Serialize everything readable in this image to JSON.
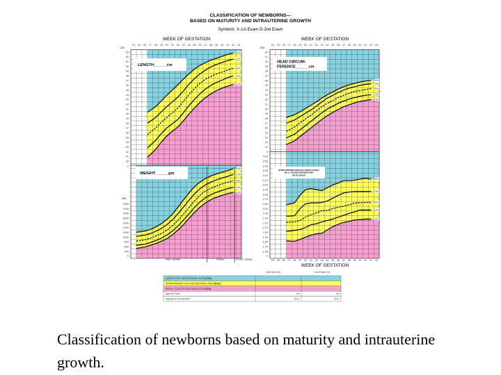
{
  "header": {
    "title_line1": "CLASSIFICATION OF NEWBORNS—",
    "title_line2": "BASED ON MATURITY AND INTRAUTERINE GROWTH",
    "symbols": "Symbols: X-1st Exam  O-2nd Exam",
    "week_of_gestation": "WEEK OF GESTATION",
    "cm_label": "CM.",
    "gm_label": "GM"
  },
  "colors": {
    "lga": "#86d2e0",
    "aga": "#ffff5e",
    "sga": "#f59fd0",
    "grid": "#4a4a4a"
  },
  "weeks": [
    "24",
    "25",
    "26",
    "27",
    "28",
    "29",
    "30",
    "31",
    "32",
    "33",
    "34",
    "35",
    "36",
    "37",
    "38",
    "39",
    "40",
    "41",
    "42",
    "43"
  ],
  "term": {
    "pre_term": "PRE-TERM",
    "term": "TERM",
    "post_term": "POST-TERM",
    "left_arrow": "←",
    "right_arrow": "→"
  },
  "chart_data": [
    {
      "type": "line",
      "panel": "length",
      "label_lines": [
        "LENGTH______cm"
      ],
      "ylabel": "CM.",
      "yticks": [
        "53",
        "52",
        "51",
        "50",
        "49",
        "48",
        "47",
        "46",
        "45",
        "44",
        "43",
        "42",
        "41",
        "40",
        "39",
        "38",
        "37",
        "36",
        "35",
        "34",
        "33",
        "32",
        "31",
        "30",
        "0"
      ],
      "x": [
        27,
        28,
        29,
        30,
        31,
        32,
        33,
        34,
        35,
        36,
        37,
        38,
        39,
        40,
        41,
        42
      ],
      "series": [
        {
          "name": "90%",
          "values": [
            40.3,
            41.5,
            42.7,
            43.9,
            45.0,
            46.1,
            47.3,
            48.4,
            49.4,
            50.2,
            50.8,
            51.3,
            51.7,
            52.1,
            52.5,
            52.8
          ]
        },
        {
          "name": "75%",
          "values": [
            38.0,
            39.2,
            40.4,
            41.5,
            42.5,
            43.5,
            44.8,
            46.2,
            47.4,
            48.4,
            49.2,
            49.9,
            50.4,
            50.8,
            51.2,
            51.5
          ]
        },
        {
          "name": "50%",
          "values": [
            35.6,
            37.0,
            38.2,
            39.2,
            40.2,
            41.2,
            42.6,
            44.0,
            45.3,
            46.4,
            47.3,
            47.9,
            48.4,
            48.8,
            49.2,
            49.6
          ]
        },
        {
          "name": "25%",
          "values": [
            32.8,
            34.4,
            35.8,
            37.0,
            37.9,
            38.8,
            40.2,
            41.7,
            43.0,
            44.2,
            45.2,
            46.0,
            46.6,
            47.1,
            47.6,
            48.0
          ]
        },
        {
          "name": "10%",
          "values": [
            30.8,
            32.5,
            34.0,
            35.3,
            36.3,
            37.2,
            38.5,
            39.9,
            41.2,
            42.4,
            43.4,
            44.2,
            44.9,
            45.4,
            45.8,
            46.2
          ]
        }
      ]
    },
    {
      "type": "line",
      "panel": "weight",
      "label_lines": [
        "WEIGHT______gm"
      ],
      "ylabel": "GM",
      "yticks": [
        "2400",
        "2200",
        "2000",
        "1800",
        "1600",
        "1400",
        "1200",
        "1000",
        "800",
        "600",
        "400",
        "0"
      ],
      "x": [
        25,
        26,
        27,
        28,
        29,
        30,
        31,
        32,
        33,
        34,
        35,
        36,
        37,
        38,
        39,
        40,
        41,
        42
      ],
      "series": [
        {
          "name": "90%",
          "values": [
            1200,
            1250,
            1320,
            1420,
            1560,
            1740,
            1960,
            2250,
            2560,
            2850,
            3120,
            3320,
            3470,
            3580,
            3660,
            3730,
            3800,
            3880
          ]
        },
        {
          "name": "75%",
          "values": [
            1030,
            1080,
            1150,
            1240,
            1360,
            1520,
            1720,
            1980,
            2260,
            2550,
            2820,
            3040,
            3200,
            3320,
            3410,
            3490,
            3560,
            3640
          ]
        },
        {
          "name": "50%",
          "values": [
            830,
            880,
            950,
            1040,
            1150,
            1290,
            1470,
            1700,
            1960,
            2240,
            2520,
            2760,
            2940,
            3060,
            3160,
            3240,
            3310,
            3380
          ]
        },
        {
          "name": "25%",
          "values": [
            650,
            700,
            770,
            850,
            950,
            1080,
            1250,
            1460,
            1710,
            1980,
            2250,
            2480,
            2660,
            2790,
            2890,
            2970,
            3040,
            3100
          ]
        },
        {
          "name": "10%",
          "values": [
            520,
            580,
            650,
            730,
            820,
            930,
            1090,
            1290,
            1520,
            1780,
            2040,
            2260,
            2440,
            2580,
            2680,
            2760,
            2830,
            2880
          ]
        }
      ]
    },
    {
      "type": "line",
      "panel": "head-circumference",
      "label_lines": [
        "HEAD CIRCUM-",
        "FERENCE______cm"
      ],
      "ylabel": "CM.",
      "yticks": [
        "42",
        "41",
        "40",
        "39",
        "38",
        "37",
        "36",
        "35",
        "34",
        "33",
        "32",
        "31",
        "30",
        "29",
        "28",
        "27",
        "26",
        "25",
        "24",
        "23",
        "22",
        "0"
      ],
      "x": [
        27,
        28,
        29,
        30,
        31,
        32,
        33,
        34,
        35,
        36,
        37,
        38,
        39,
        40,
        41,
        42
      ],
      "series": [
        {
          "name": "90%",
          "values": [
            28.2,
            28.8,
            29.4,
            30.1,
            30.8,
            31.5,
            32.3,
            33.0,
            33.6,
            34.2,
            34.7,
            35.1,
            35.4,
            35.7,
            35.9,
            36.0
          ]
        },
        {
          "name": "75%",
          "values": [
            27.0,
            27.7,
            28.4,
            29.1,
            29.8,
            30.6,
            31.5,
            32.3,
            32.9,
            33.5,
            34.0,
            34.4,
            34.7,
            35.0,
            35.2,
            35.3
          ]
        },
        {
          "name": "50%",
          "values": [
            25.3,
            26.2,
            27.1,
            27.9,
            28.7,
            29.6,
            30.5,
            31.2,
            31.8,
            32.4,
            32.9,
            33.3,
            33.7,
            33.9,
            34.1,
            34.3
          ]
        },
        {
          "name": "25%",
          "values": [
            23.9,
            24.7,
            25.6,
            26.5,
            27.4,
            28.3,
            29.2,
            30.0,
            30.6,
            31.2,
            31.7,
            32.1,
            32.4,
            32.7,
            32.9,
            33.0
          ]
        },
        {
          "name": "10%",
          "values": [
            22.5,
            23.3,
            24.2,
            25.1,
            26.0,
            26.9,
            27.8,
            28.6,
            29.3,
            29.9,
            30.5,
            30.9,
            31.3,
            31.6,
            31.8,
            32.0
          ]
        }
      ]
    },
    {
      "type": "line",
      "panel": "weight-length-ratio",
      "label_lines": [
        "INTRAUTERINE WEIGHT-LENGTH RATIO",
        "100 x GRAMS/CENTIMETERS³",
        "BOTH SEXES"
      ],
      "yticks": [
        "3.60",
        "3.50",
        "3.40",
        "3.30",
        "3.20",
        "3.10",
        "3.00",
        "2.90",
        "2.80",
        "2.70",
        "2.60",
        "2.50",
        "2.40",
        "2.30",
        "2.20",
        "2.10",
        "2.00",
        "1.90",
        "1.80",
        "1.70",
        "1.60",
        "0"
      ],
      "xlabel": "WEEK OF GESTATION",
      "x": [
        27,
        28,
        29,
        30,
        31,
        32,
        33,
        34,
        35,
        36,
        37,
        38,
        39,
        40,
        41,
        42
      ],
      "series": [
        {
          "name": "90%",
          "values": [
            2.58,
            2.62,
            2.78,
            2.9,
            2.92,
            2.9,
            2.88,
            2.94,
            3.0,
            3.04,
            3.09,
            3.09,
            3.1,
            3.12,
            3.14,
            3.12
          ]
        },
        {
          "name": "75%",
          "values": [
            2.34,
            2.35,
            2.5,
            2.6,
            2.62,
            2.62,
            2.63,
            2.66,
            2.72,
            2.78,
            2.83,
            2.85,
            2.86,
            2.86,
            2.86,
            2.86
          ]
        },
        {
          "name": "50%",
          "values": [
            2.21,
            2.22,
            2.25,
            2.32,
            2.37,
            2.41,
            2.46,
            2.46,
            2.5,
            2.53,
            2.55,
            2.58,
            2.62,
            2.62,
            2.63,
            2.63
          ]
        },
        {
          "name": "25%",
          "values": [
            2.02,
            2.04,
            2.06,
            2.1,
            2.16,
            2.18,
            2.22,
            2.25,
            2.28,
            2.32,
            2.36,
            2.4,
            2.43,
            2.47,
            2.47,
            2.47
          ]
        },
        {
          "name": "10%",
          "values": [
            1.82,
            1.81,
            1.85,
            1.9,
            1.94,
            1.97,
            1.98,
            2.05,
            2.12,
            2.17,
            2.21,
            2.23,
            2.26,
            2.27,
            2.28,
            2.28
          ]
        }
      ]
    }
  ],
  "table": {
    "headers": [
      "",
      "1st Exam (X)",
      "2nd Exam (O)"
    ],
    "rows": [
      {
        "label_prefix": "LARGE FOR GESTATIONAL AGE ",
        "label_bold": "(LGA)",
        "cells": [
          "",
          ""
        ],
        "color": "lga"
      },
      {
        "label_prefix": "APPROPRIATE FOR GESTATIONAL AGE ",
        "label_bold": "(AGA)",
        "cells": [
          "",
          ""
        ],
        "color": "aga"
      },
      {
        "label_prefix": "SMALL FOR GESTATIONAL AGE ",
        "label_bold": "(SGA)",
        "cells": [
          "",
          ""
        ],
        "color": "sga"
      },
      {
        "label_prefix": "Age at Exam",
        "label_bold": "",
        "cells": [
          "hrs",
          "hrs"
        ],
        "color": ""
      },
      {
        "label_prefix": "Signature of Examiner",
        "label_bold": "",
        "cells": [
          "M.D.",
          "M.D."
        ],
        "color": ""
      }
    ]
  },
  "caption": "Classification of newborns based on maturity and intrauterine growth."
}
